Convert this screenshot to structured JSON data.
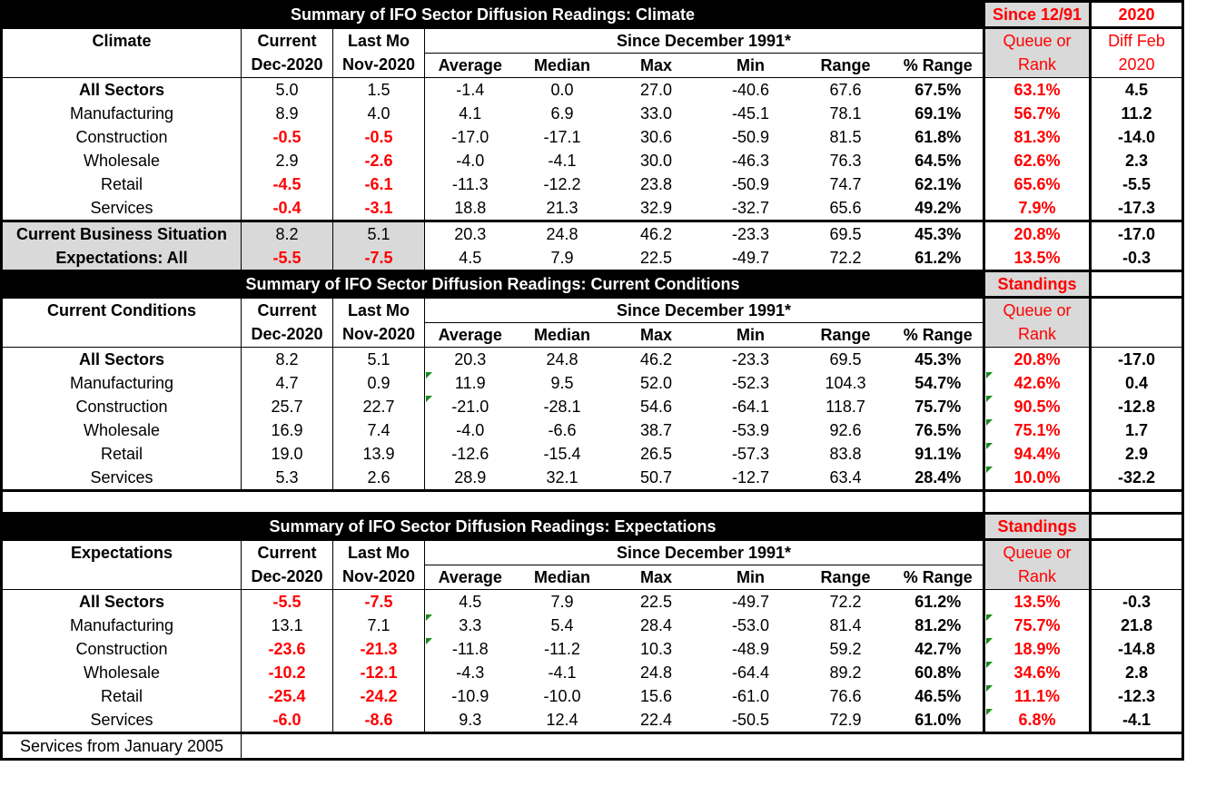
{
  "climate": {
    "title": "Summary of IFO Sector Diffusion Readings: Climate",
    "standings_title": "Since 12/91",
    "diff_title": "2020",
    "row_label": "Climate",
    "current_h1": "Current",
    "current_h2": "Dec-2020",
    "lastmo_h1": "Last Mo",
    "lastmo_h2": "Nov-2020",
    "since": "Since December 1991*",
    "stats": [
      "Average",
      "Median",
      "Max",
      "Min",
      "Range",
      "% Range"
    ],
    "queue_h1": "Queue or",
    "queue_h2": "Rank",
    "diff_h1": "Diff Feb",
    "diff_h2": "2020",
    "rows": [
      {
        "label": "All Sectors",
        "cur": "5.0",
        "last": "1.5",
        "avg": "-1.4",
        "med": "0.0",
        "max": "27.0",
        "min": "-40.6",
        "range": "67.6",
        "pct": "67.5%",
        "queue": "63.1%",
        "diff": "4.5"
      },
      {
        "label": "Manufacturing",
        "cur": "8.9",
        "last": "4.0",
        "avg": "4.1",
        "med": "6.9",
        "max": "33.0",
        "min": "-45.1",
        "range": "78.1",
        "pct": "69.1%",
        "queue": "56.7%",
        "diff": "11.2"
      },
      {
        "label": "Construction",
        "cur": "-0.5",
        "last": "-0.5",
        "avg": "-17.0",
        "med": "-17.1",
        "max": "30.6",
        "min": "-50.9",
        "range": "81.5",
        "pct": "61.8%",
        "queue": "81.3%",
        "diff": "-14.0"
      },
      {
        "label": "Wholesale",
        "cur": "2.9",
        "last": "-2.6",
        "avg": "-4.0",
        "med": "-4.1",
        "max": "30.0",
        "min": "-46.3",
        "range": "76.3",
        "pct": "64.5%",
        "queue": "62.6%",
        "diff": "2.3"
      },
      {
        "label": "Retail",
        "cur": "-4.5",
        "last": "-6.1",
        "avg": "-11.3",
        "med": "-12.2",
        "max": "23.8",
        "min": "-50.9",
        "range": "74.7",
        "pct": "62.1%",
        "queue": "65.6%",
        "diff": "-5.5"
      },
      {
        "label": "Services",
        "cur": "-0.4",
        "last": "-3.1",
        "avg": "18.8",
        "med": "21.3",
        "max": "32.9",
        "min": "-32.7",
        "range": "65.6",
        "pct": "49.2%",
        "queue": "7.9%",
        "diff": "-17.3"
      }
    ],
    "extra": [
      {
        "label": "Current Business Situation",
        "cur": "8.2",
        "last": "5.1",
        "avg": "20.3",
        "med": "24.8",
        "max": "46.2",
        "min": "-23.3",
        "range": "69.5",
        "pct": "45.3%",
        "queue": "20.8%",
        "diff": "-17.0"
      },
      {
        "label": "Expectations: All",
        "cur": "-5.5",
        "last": "-7.5",
        "avg": "4.5",
        "med": "7.9",
        "max": "22.5",
        "min": "-49.7",
        "range": "72.2",
        "pct": "61.2%",
        "queue": "13.5%",
        "diff": "-0.3"
      }
    ]
  },
  "current": {
    "title": "Summary of IFO Sector Diffusion Readings: Current Conditions",
    "standings_title": "Standings",
    "row_label": "Current Conditions",
    "current_h1": "Current",
    "current_h2": "Dec-2020",
    "lastmo_h1": "Last Mo",
    "lastmo_h2": "Nov-2020",
    "since": "Since December 1991*",
    "stats": [
      "Average",
      "Median",
      "Max",
      "Min",
      "Range",
      "% Range"
    ],
    "queue_h1": "Queue or",
    "queue_h2": "Rank",
    "rows": [
      {
        "label": "All Sectors",
        "cur": "8.2",
        "last": "5.1",
        "avg": "20.3",
        "med": "24.8",
        "max": "46.2",
        "min": "-23.3",
        "range": "69.5",
        "pct": "45.3%",
        "queue": "20.8%",
        "diff": "-17.0"
      },
      {
        "label": "Manufacturing",
        "cur": "4.7",
        "last": "0.9",
        "avg": "11.9",
        "med": "9.5",
        "max": "52.0",
        "min": "-52.3",
        "range": "104.3",
        "pct": "54.7%",
        "queue": "42.6%",
        "diff": "0.4"
      },
      {
        "label": "Construction",
        "cur": "25.7",
        "last": "22.7",
        "avg": "-21.0",
        "med": "-28.1",
        "max": "54.6",
        "min": "-64.1",
        "range": "118.7",
        "pct": "75.7%",
        "queue": "90.5%",
        "diff": "-12.8"
      },
      {
        "label": "Wholesale",
        "cur": "16.9",
        "last": "7.4",
        "avg": "-4.0",
        "med": "-6.6",
        "max": "38.7",
        "min": "-53.9",
        "range": "92.6",
        "pct": "76.5%",
        "queue": "75.1%",
        "diff": "1.7"
      },
      {
        "label": "Retail",
        "cur": "19.0",
        "last": "13.9",
        "avg": "-12.6",
        "med": "-15.4",
        "max": "26.5",
        "min": "-57.3",
        "range": "83.8",
        "pct": "91.1%",
        "queue": "94.4%",
        "diff": "2.9"
      },
      {
        "label": "Services",
        "cur": "5.3",
        "last": "2.6",
        "avg": "28.9",
        "med": "32.1",
        "max": "50.7",
        "min": "-12.7",
        "range": "63.4",
        "pct": "28.4%",
        "queue": "10.0%",
        "diff": "-32.2"
      }
    ]
  },
  "expectations": {
    "title": "Summary of IFO Sector Diffusion Readings: Expectations",
    "standings_title": "Standings",
    "row_label": "Expectations",
    "current_h1": "Current",
    "current_h2": "Dec-2020",
    "lastmo_h1": "Last Mo",
    "lastmo_h2": "Nov-2020",
    "since": "Since December 1991*",
    "stats": [
      "Average",
      "Median",
      "Max",
      "Min",
      "Range",
      "% Range"
    ],
    "queue_h1": "Queue or",
    "queue_h2": "Rank",
    "rows": [
      {
        "label": "All Sectors",
        "cur": "-5.5",
        "last": "-7.5",
        "avg": "4.5",
        "med": "7.9",
        "max": "22.5",
        "min": "-49.7",
        "range": "72.2",
        "pct": "61.2%",
        "queue": "13.5%",
        "diff": "-0.3"
      },
      {
        "label": "Manufacturing",
        "cur": "13.1",
        "last": "7.1",
        "avg": "3.3",
        "med": "5.4",
        "max": "28.4",
        "min": "-53.0",
        "range": "81.4",
        "pct": "81.2%",
        "queue": "75.7%",
        "diff": "21.8"
      },
      {
        "label": "Construction",
        "cur": "-23.6",
        "last": "-21.3",
        "avg": "-11.8",
        "med": "-11.2",
        "max": "10.3",
        "min": "-48.9",
        "range": "59.2",
        "pct": "42.7%",
        "queue": "18.9%",
        "diff": "-14.8"
      },
      {
        "label": "Wholesale",
        "cur": "-10.2",
        "last": "-12.1",
        "avg": "-4.3",
        "med": "-4.1",
        "max": "24.8",
        "min": "-64.4",
        "range": "89.2",
        "pct": "60.8%",
        "queue": "34.6%",
        "diff": "2.8"
      },
      {
        "label": "Retail",
        "cur": "-25.4",
        "last": "-24.2",
        "avg": "-10.9",
        "med": "-10.0",
        "max": "15.6",
        "min": "-61.0",
        "range": "76.6",
        "pct": "46.5%",
        "queue": "11.1%",
        "diff": "-12.3"
      },
      {
        "label": "Services",
        "cur": "-6.0",
        "last": "-8.6",
        "avg": "9.3",
        "med": "12.4",
        "max": "22.4",
        "min": "-50.5",
        "range": "72.9",
        "pct": "61.0%",
        "queue": "6.8%",
        "diff": "-4.1"
      }
    ]
  },
  "footnote": "Services from January 2005",
  "colors": {
    "negative": "#ff0000",
    "header_bg": "#000000",
    "standings_bg": "#d9d9d9",
    "marker": "#1a8a1a"
  }
}
